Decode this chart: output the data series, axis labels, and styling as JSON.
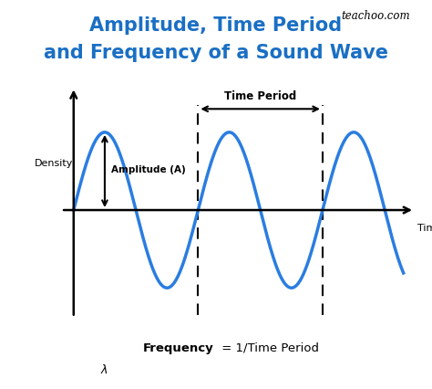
{
  "title_line1": "Amplitude, Time Period",
  "title_line2": "and Frequency of a Sound Wave",
  "title_color": "#1a6fc4",
  "title_fontsize": 15,
  "wave_color": "#2a7de1",
  "wave_linewidth": 2.5,
  "axis_color": "black",
  "density_label": "Density",
  "time_label": "Time",
  "amplitude_label": "Amplitude (A)",
  "time_period_label": "Time Period",
  "frequency_bold": "Frequency",
  "frequency_rest": " = 1/Time Period",
  "teachoo_label": "teachoo.com",
  "lambda_label": "λ",
  "background_color": "#ffffff",
  "dashed_x1": 2.0,
  "dashed_x2": 4.0,
  "wave_xstart": 0.0,
  "wave_xend": 5.3,
  "wave_period": 2.0,
  "xlim": [
    -0.35,
    5.55
  ],
  "ylim": [
    -1.45,
    1.65
  ]
}
